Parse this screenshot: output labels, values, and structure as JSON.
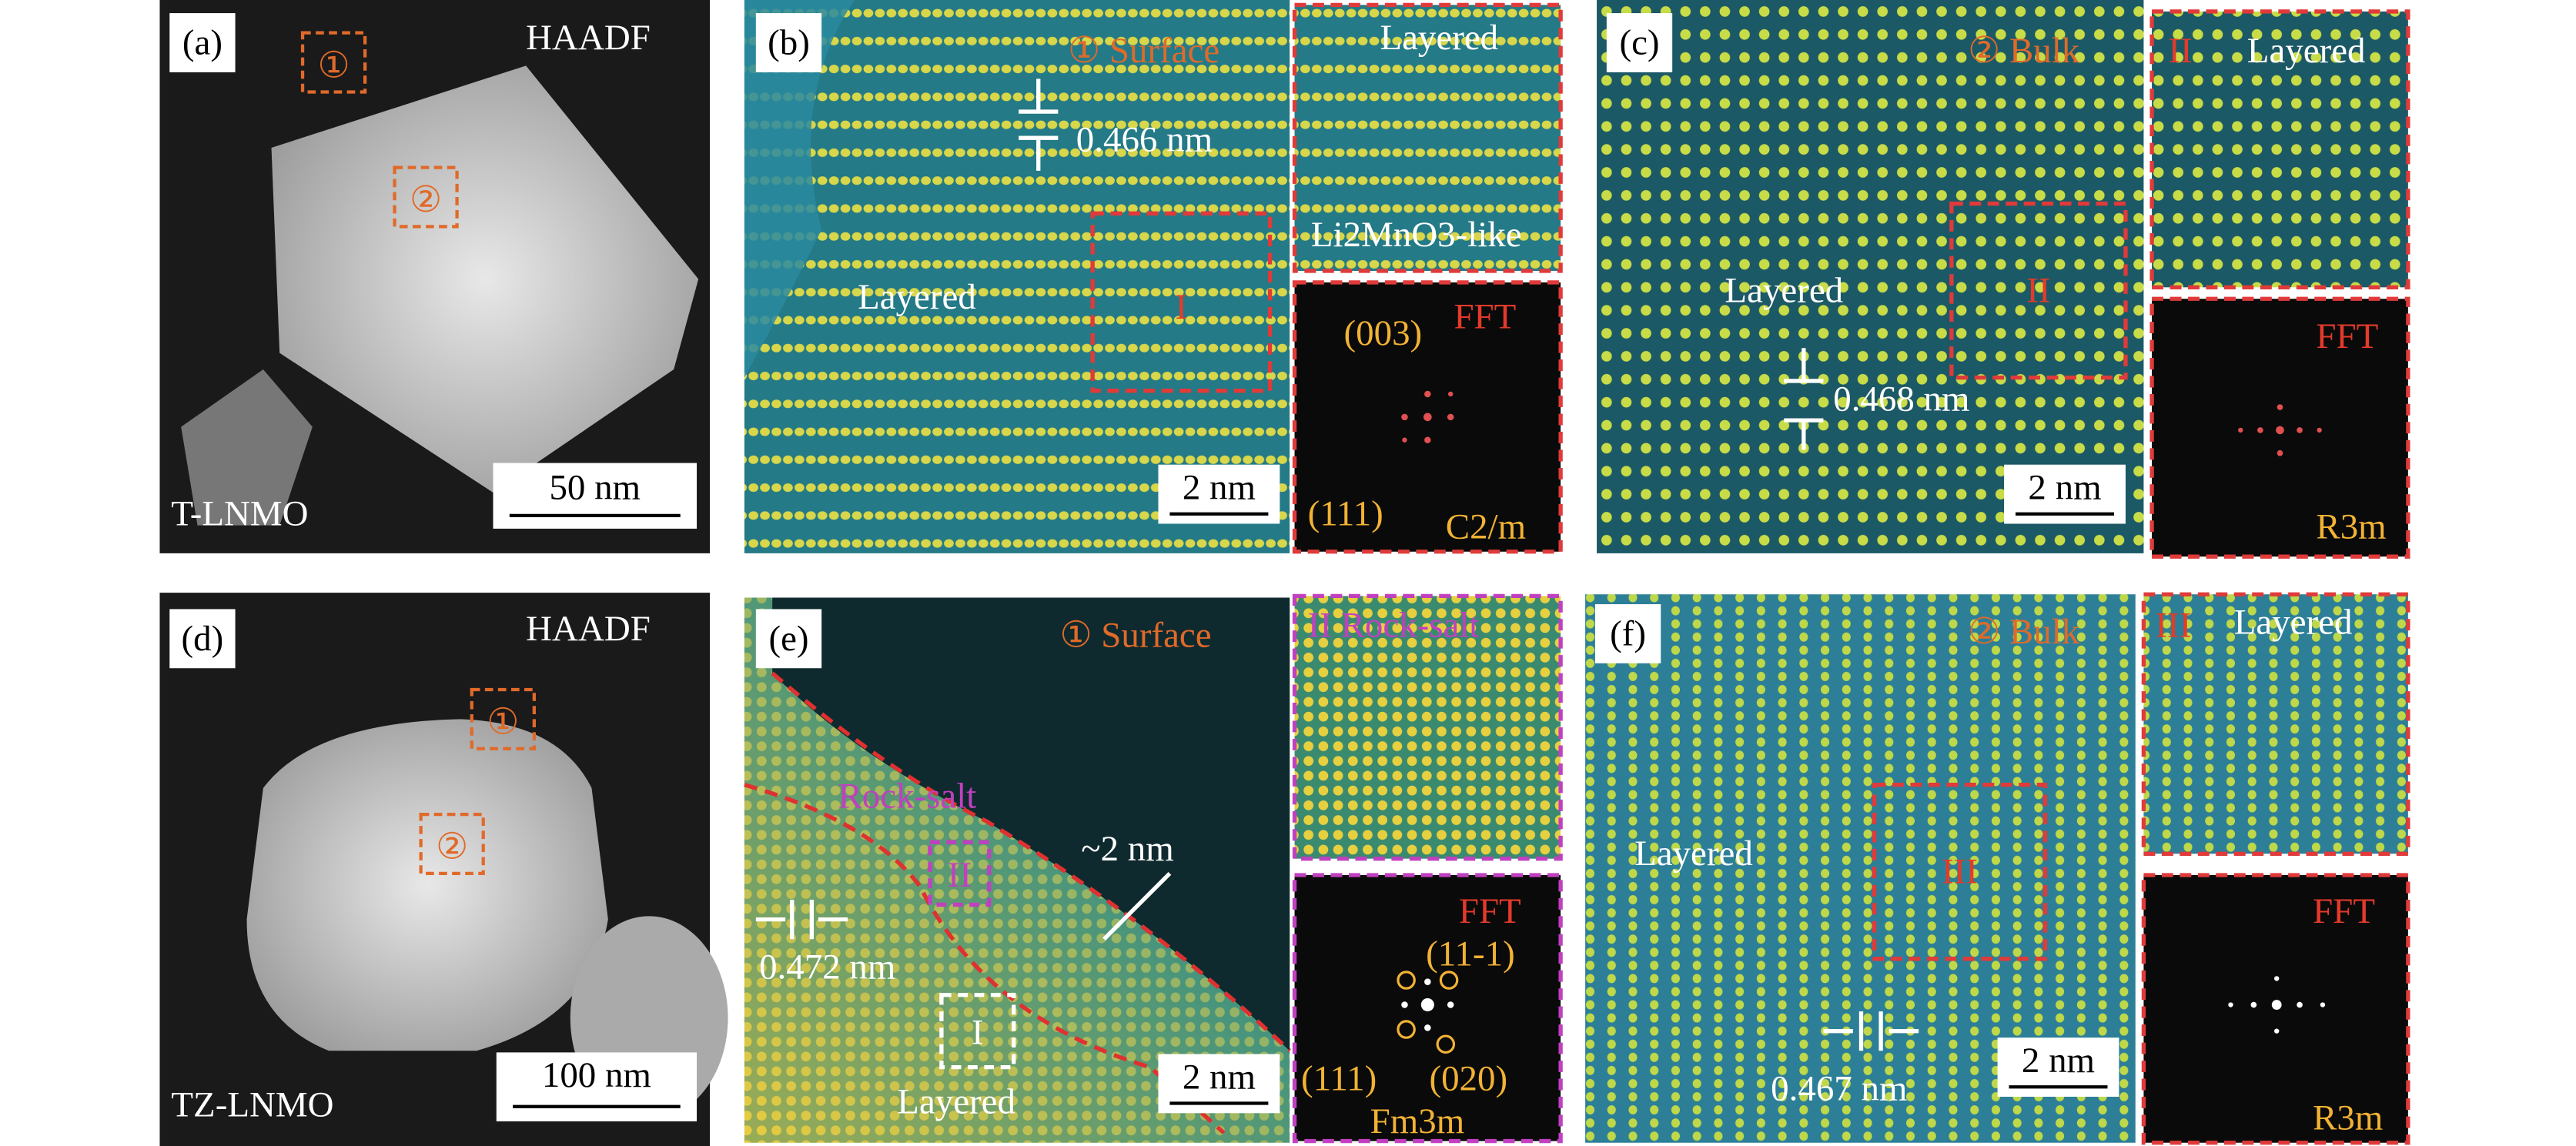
{
  "panels": {
    "a": {
      "label": "(a)",
      "mode": "HAADF",
      "region1": "①",
      "region2": "②",
      "scale_bar": "50 nm",
      "sample": "T-LNMO"
    },
    "b": {
      "label": "(b)",
      "region": "① Surface",
      "spacing": "0.466 nm",
      "structure": "Layered",
      "box": "I",
      "scale_bar": "2 nm",
      "inset": {
        "structure": "Layered",
        "phase": "Li2MnO3-like"
      },
      "fft": {
        "title": "FFT",
        "spot1": "(003)",
        "spot2": "(111)",
        "space_group": "C2/m"
      }
    },
    "c": {
      "label": "(c)",
      "region": "② Bulk",
      "structure": "Layered",
      "box": "II",
      "spacing": "0.468 nm",
      "scale_bar": "2 nm",
      "inset": {
        "box": "II",
        "structure": "Layered"
      },
      "fft": {
        "title": "FFT",
        "space_group": "R3m"
      }
    },
    "d": {
      "label": "(d)",
      "mode": "HAADF",
      "region1": "①",
      "region2": "②",
      "scale_bar": "100 nm",
      "sample": "TZ-LNMO"
    },
    "e": {
      "label": "(e)",
      "region": "① Surface",
      "phase": "Rock-salt",
      "thickness": "~2 nm",
      "spacing": "0.472 nm",
      "box2": "II",
      "box1": "I",
      "structure": "Layered",
      "scale_bar": "2 nm",
      "inset": {
        "title": "II Rock-salt"
      },
      "fft": {
        "title": "FFT",
        "spot1": "(11-1)",
        "spot2": "(111)",
        "spot3": "(020)",
        "space_group": "Fm3m"
      }
    },
    "f": {
      "label": "(f)",
      "region": "② Bulk",
      "structure": "Layered",
      "box": "III",
      "spacing": "0.467 nm",
      "scale_bar": "2 nm",
      "inset": {
        "box": "III",
        "structure": "Layered"
      },
      "fft": {
        "title": "FFT",
        "space_group": "R3m"
      }
    }
  }
}
